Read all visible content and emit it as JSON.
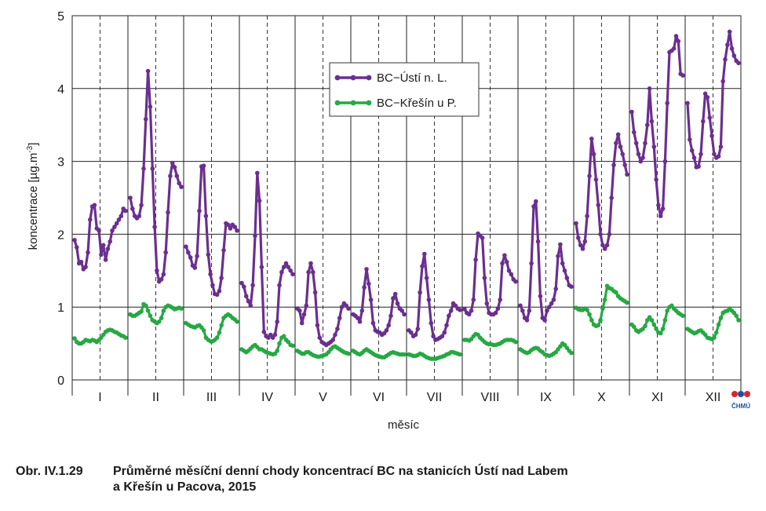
{
  "chart_data": {
    "type": "line",
    "title": "",
    "xlabel": "měsíc",
    "ylabel": "koncentrace [µg.m-3]",
    "ylabel_parts": {
      "base": "koncentrace [µg.m",
      "sup": "-3",
      "end": "]"
    },
    "ylim": [
      0,
      5
    ],
    "yticks": [
      0,
      1,
      2,
      3,
      4,
      5
    ],
    "categories": [
      "I",
      "II",
      "III",
      "IV",
      "V",
      "VI",
      "VII",
      "VIII",
      "IX",
      "X",
      "XI",
      "XII"
    ],
    "points_per_month": 24,
    "x_description": "hodina 0–23 v každém měsíci",
    "grid": true,
    "legend_position": "top-center",
    "series": [
      {
        "name": "BC−Ústí n. L.",
        "color": "#6b2f8f",
        "values": [
          [
            1.92,
            1.82,
            1.6,
            1.62,
            1.52,
            1.55,
            1.75,
            2.2,
            2.38,
            2.4,
            2.08,
            2.05,
            1.72,
            1.85,
            1.65,
            1.8,
            1.9,
            2.05,
            2.1,
            2.15,
            2.2,
            2.25,
            2.35,
            2.32
          ],
          [
            2.5,
            2.35,
            2.25,
            2.22,
            2.25,
            2.4,
            2.9,
            3.58,
            4.24,
            3.75,
            2.9,
            2.1,
            1.5,
            1.35,
            1.38,
            1.45,
            1.75,
            2.3,
            2.8,
            2.98,
            2.92,
            2.8,
            2.7,
            2.65
          ],
          [
            1.83,
            1.75,
            1.68,
            1.57,
            1.54,
            1.7,
            2.32,
            2.93,
            2.94,
            2.25,
            1.72,
            1.45,
            1.3,
            1.18,
            1.17,
            1.22,
            1.4,
            1.78,
            2.15,
            2.13,
            2.08,
            2.13,
            2.1,
            2.05
          ],
          [
            1.33,
            1.28,
            1.15,
            1.08,
            1.02,
            1.3,
            1.98,
            2.84,
            2.46,
            1.55,
            0.66,
            0.6,
            0.58,
            0.62,
            0.58,
            0.62,
            0.8,
            1.3,
            1.48,
            1.55,
            1.6,
            1.55,
            1.5,
            1.45
          ],
          [
            0.98,
            0.95,
            0.78,
            0.9,
            1.02,
            1.48,
            1.6,
            1.48,
            1.2,
            0.75,
            0.58,
            0.52,
            0.5,
            0.48,
            0.5,
            0.52,
            0.55,
            0.62,
            0.7,
            0.85,
            1.0,
            1.05,
            1.02,
            0.98
          ],
          [
            0.9,
            0.88,
            0.85,
            0.8,
            0.95,
            1.27,
            1.52,
            1.32,
            1.1,
            0.78,
            0.68,
            0.66,
            0.65,
            0.62,
            0.64,
            0.68,
            0.75,
            0.88,
            1.12,
            1.18,
            1.05,
            0.98,
            0.95,
            0.9
          ],
          [
            0.68,
            0.65,
            0.6,
            0.62,
            0.7,
            1.2,
            1.56,
            1.73,
            1.4,
            1.1,
            0.78,
            0.6,
            0.55,
            0.56,
            0.58,
            0.6,
            0.65,
            0.75,
            0.88,
            0.95,
            1.05,
            1.02,
            0.98,
            0.96
          ],
          [
            0.97,
            0.92,
            0.9,
            0.95,
            1.1,
            1.65,
            2.01,
            1.98,
            1.95,
            1.4,
            1.05,
            0.92,
            0.9,
            0.9,
            0.92,
            0.98,
            1.1,
            1.6,
            1.71,
            1.62,
            1.5,
            1.45,
            1.38,
            1.35
          ],
          [
            1.02,
            0.95,
            0.85,
            0.82,
            0.95,
            1.6,
            2.38,
            2.45,
            1.9,
            1.15,
            0.85,
            0.82,
            0.95,
            1.0,
            1.05,
            1.1,
            1.25,
            1.7,
            1.86,
            1.6,
            1.5,
            1.4,
            1.3,
            1.28
          ],
          [
            2.15,
            1.95,
            1.85,
            1.8,
            1.9,
            2.25,
            2.8,
            3.31,
            3.1,
            2.75,
            2.4,
            2.0,
            1.85,
            1.8,
            1.85,
            2.0,
            2.5,
            2.95,
            3.25,
            3.37,
            3.2,
            3.1,
            2.95,
            2.82
          ],
          [
            3.68,
            3.4,
            3.25,
            3.1,
            3.0,
            3.05,
            3.25,
            3.5,
            4.0,
            3.55,
            3.2,
            2.75,
            2.4,
            2.25,
            2.35,
            3.0,
            3.8,
            4.5,
            4.52,
            4.55,
            4.72,
            4.65,
            4.2,
            4.18
          ],
          [
            3.8,
            3.3,
            3.15,
            3.05,
            2.92,
            2.93,
            3.1,
            3.55,
            3.93,
            3.88,
            3.6,
            3.35,
            3.1,
            3.05,
            3.07,
            3.2,
            4.1,
            4.4,
            4.6,
            4.78,
            4.55,
            4.45,
            4.38,
            4.35
          ]
        ]
      },
      {
        "name": "BC−Křešín u P.",
        "color": "#27a844",
        "values": [
          [
            0.57,
            0.52,
            0.5,
            0.5,
            0.52,
            0.55,
            0.54,
            0.53,
            0.55,
            0.54,
            0.52,
            0.55,
            0.58,
            0.62,
            0.66,
            0.68,
            0.69,
            0.68,
            0.66,
            0.65,
            0.63,
            0.61,
            0.6,
            0.58
          ],
          [
            0.9,
            0.88,
            0.88,
            0.9,
            0.92,
            0.94,
            1.04,
            1.02,
            0.95,
            0.88,
            0.82,
            0.8,
            0.78,
            0.8,
            0.85,
            0.95,
            1.0,
            1.02,
            1.01,
            0.99,
            0.97,
            0.98,
            0.99,
            0.98
          ],
          [
            0.78,
            0.76,
            0.74,
            0.73,
            0.72,
            0.74,
            0.75,
            0.72,
            0.68,
            0.58,
            0.55,
            0.53,
            0.53,
            0.55,
            0.58,
            0.65,
            0.75,
            0.85,
            0.88,
            0.9,
            0.88,
            0.85,
            0.83,
            0.8
          ],
          [
            0.42,
            0.4,
            0.38,
            0.4,
            0.43,
            0.46,
            0.48,
            0.45,
            0.42,
            0.42,
            0.4,
            0.38,
            0.37,
            0.36,
            0.35,
            0.36,
            0.4,
            0.5,
            0.58,
            0.6,
            0.55,
            0.52,
            0.48,
            0.47
          ],
          [
            0.4,
            0.38,
            0.36,
            0.36,
            0.38,
            0.38,
            0.36,
            0.34,
            0.33,
            0.32,
            0.32,
            0.33,
            0.34,
            0.35,
            0.38,
            0.42,
            0.45,
            0.46,
            0.44,
            0.42,
            0.4,
            0.38,
            0.37,
            0.36
          ],
          [
            0.4,
            0.38,
            0.36,
            0.35,
            0.37,
            0.4,
            0.42,
            0.4,
            0.38,
            0.36,
            0.34,
            0.33,
            0.32,
            0.31,
            0.31,
            0.33,
            0.35,
            0.37,
            0.38,
            0.37,
            0.36,
            0.35,
            0.35,
            0.35
          ],
          [
            0.35,
            0.34,
            0.33,
            0.33,
            0.34,
            0.36,
            0.35,
            0.33,
            0.31,
            0.3,
            0.29,
            0.29,
            0.29,
            0.3,
            0.31,
            0.32,
            0.33,
            0.35,
            0.36,
            0.38,
            0.38,
            0.37,
            0.36,
            0.35
          ],
          [
            0.55,
            0.55,
            0.54,
            0.56,
            0.6,
            0.63,
            0.62,
            0.58,
            0.55,
            0.52,
            0.5,
            0.49,
            0.49,
            0.48,
            0.48,
            0.49,
            0.5,
            0.52,
            0.54,
            0.55,
            0.55,
            0.55,
            0.54,
            0.52
          ],
          [
            0.42,
            0.4,
            0.38,
            0.37,
            0.38,
            0.41,
            0.43,
            0.44,
            0.43,
            0.4,
            0.38,
            0.35,
            0.34,
            0.33,
            0.34,
            0.36,
            0.38,
            0.42,
            0.46,
            0.5,
            0.48,
            0.44,
            0.4,
            0.37
          ],
          [
            0.99,
            0.97,
            0.96,
            0.96,
            0.98,
            0.96,
            0.9,
            0.82,
            0.76,
            0.74,
            0.75,
            0.82,
            0.98,
            1.1,
            1.29,
            1.26,
            1.25,
            1.22,
            1.2,
            1.15,
            1.12,
            1.1,
            1.08,
            1.06
          ],
          [
            0.76,
            0.73,
            0.68,
            0.66,
            0.68,
            0.7,
            0.74,
            0.82,
            0.86,
            0.82,
            0.76,
            0.7,
            0.65,
            0.64,
            0.7,
            0.82,
            0.95,
            1.0,
            1.02,
            0.98,
            0.95,
            0.92,
            0.9,
            0.88
          ],
          [
            0.7,
            0.68,
            0.66,
            0.64,
            0.65,
            0.67,
            0.68,
            0.65,
            0.62,
            0.58,
            0.57,
            0.56,
            0.58,
            0.65,
            0.76,
            0.85,
            0.92,
            0.94,
            0.95,
            0.98,
            0.95,
            0.92,
            0.88,
            0.82
          ]
        ]
      }
    ]
  },
  "logo": {
    "label": "ČHMÚ"
  },
  "caption": {
    "number": "Obr. IV.1.29",
    "line1": "Průměrné měsíční denní chody koncentrací BC na stanicích Ústí nad Labem",
    "line2": "a Křešín u Pacova, 2015"
  }
}
